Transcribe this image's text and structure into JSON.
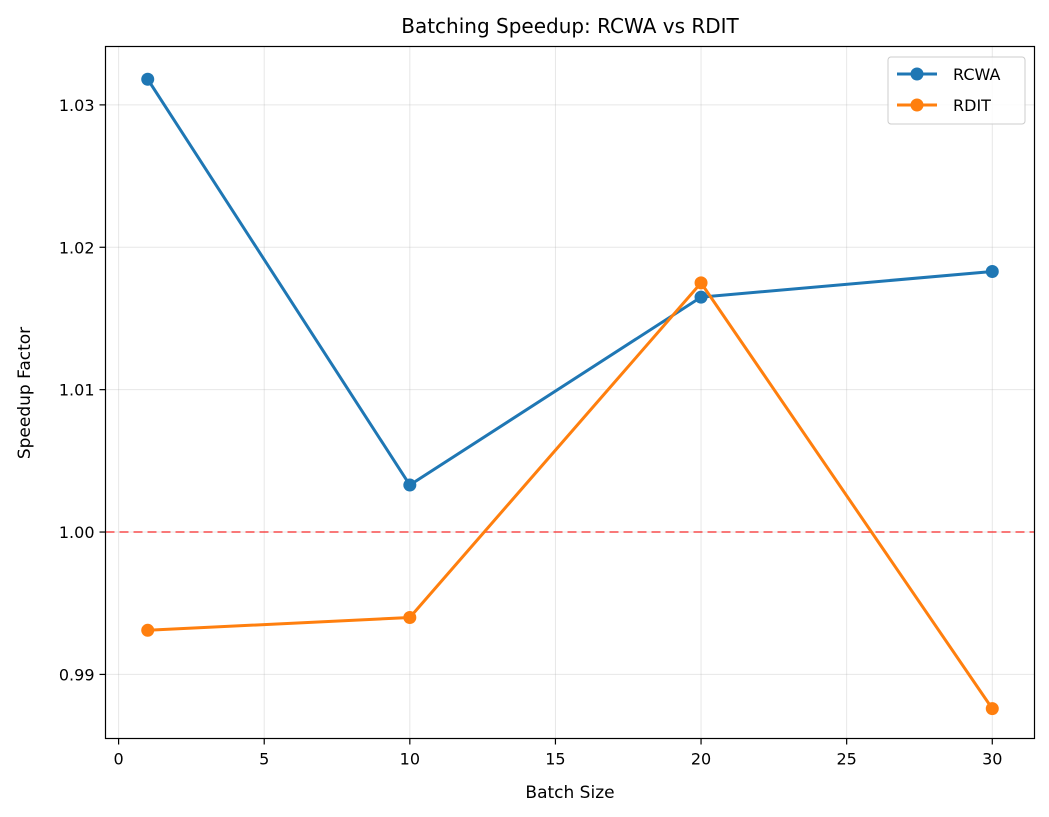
{
  "chart_data": {
    "type": "line",
    "title": "Batching Speedup: RCWA vs RDIT",
    "xlabel": "Batch Size",
    "ylabel": "Speedup Factor",
    "xlim": [
      -0.45,
      31.45
    ],
    "ylim": [
      0.9855,
      1.0341
    ],
    "x_ticks": [
      0,
      5,
      10,
      15,
      20,
      25,
      30
    ],
    "y_ticks": [
      0.99,
      1.0,
      1.01,
      1.02,
      1.03
    ],
    "x_tick_labels": [
      "0",
      "5",
      "10",
      "15",
      "20",
      "25",
      "30"
    ],
    "y_tick_labels": [
      "0.99",
      "1.00",
      "1.01",
      "1.02",
      "1.03"
    ],
    "grid": true,
    "legend_position": "top-right",
    "reference_line": {
      "y": 1.0,
      "color": "#ff0000",
      "style": "dashed"
    },
    "series": [
      {
        "name": "RCWA",
        "color": "#1f77b4",
        "x": [
          1,
          10,
          20,
          30
        ],
        "y": [
          1.0318,
          1.0033,
          1.0165,
          1.0183
        ]
      },
      {
        "name": "RDIT",
        "color": "#ff7f0e",
        "x": [
          1,
          10,
          20,
          30
        ],
        "y": [
          0.9931,
          0.994,
          1.0175,
          0.9876
        ]
      }
    ]
  }
}
